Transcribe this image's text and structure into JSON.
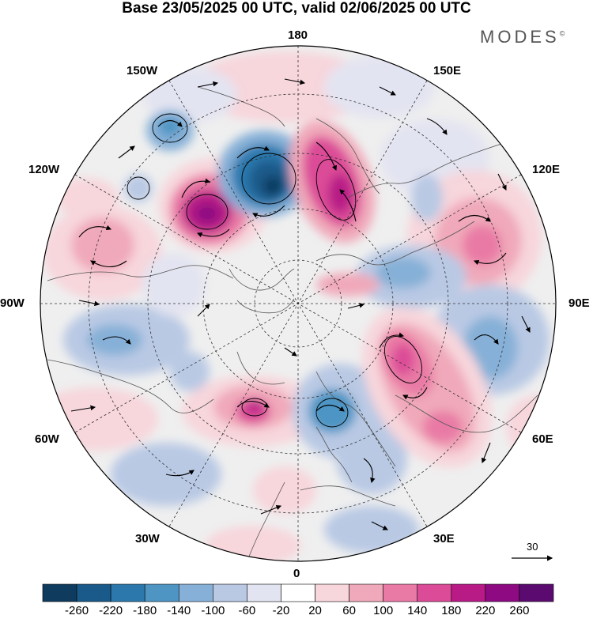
{
  "title": "Base 23/05/2025 00 UTC, valid 02/06/2025 00 UTC",
  "logo": "MODES",
  "logo_mark": "©",
  "longitude_labels": {
    "top": "180",
    "bottom": "0",
    "left": "90W",
    "right": "90E",
    "upper_left_1": "150W",
    "upper_left_2": "120W",
    "upper_right_1": "150E",
    "upper_right_2": "120E",
    "lower_left_1": "60W",
    "lower_left_2": "30W",
    "lower_right_1": "60E",
    "lower_right_2": "30E"
  },
  "reference_vector": {
    "value": "30"
  },
  "colorbar": {
    "ticks": [
      "-260",
      "-220",
      "-180",
      "-140",
      "-100",
      "-60",
      "-20",
      "20",
      "60",
      "100",
      "140",
      "180",
      "220",
      "260"
    ],
    "colors": [
      "#0e3b5e",
      "#1a5a8a",
      "#2c78ad",
      "#4e95c4",
      "#86b0d7",
      "#b9c9e4",
      "#e3e4f1",
      "#ffffff",
      "#f7d6dc",
      "#f0a9ba",
      "#e97aa5",
      "#db4b97",
      "#b81a86",
      "#8d0a82",
      "#5b0b6f"
    ]
  },
  "colors": {
    "land_background": "#efefef",
    "coast": "#555555",
    "graticule": "#333333"
  }
}
